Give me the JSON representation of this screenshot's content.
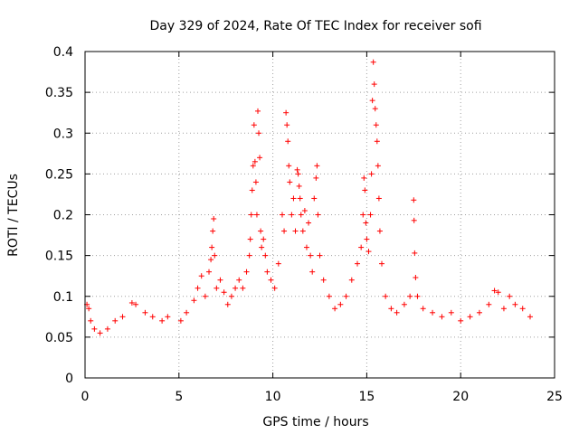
{
  "chart_data": {
    "type": "scatter",
    "title": "Day 329 of 2024, Rate Of TEC Index for receiver sofi",
    "xlabel": "GPS time / hours",
    "ylabel": "ROTI / TECUs",
    "xlim": [
      0,
      25
    ],
    "ylim": [
      0,
      0.4
    ],
    "xticks": [
      0,
      5,
      10,
      15,
      20,
      25
    ],
    "xtick_labels": [
      "0",
      "5",
      "10",
      "15",
      "20",
      "25"
    ],
    "yticks": [
      0,
      0.05,
      0.1,
      0.15,
      0.2,
      0.25,
      0.3,
      0.35,
      0.4
    ],
    "ytick_labels": [
      "0",
      "0.05",
      "0.1",
      "0.15",
      "0.2",
      "0.25",
      "0.3",
      "0.35",
      "0.4"
    ],
    "grid": true,
    "marker": "+",
    "color": "#ff0000",
    "series": [
      {
        "name": "ROTI",
        "points": [
          [
            0.1,
            0.09
          ],
          [
            0.2,
            0.085
          ],
          [
            0.3,
            0.07
          ],
          [
            0.5,
            0.06
          ],
          [
            0.8,
            0.055
          ],
          [
            1.2,
            0.06
          ],
          [
            1.6,
            0.07
          ],
          [
            2.0,
            0.075
          ],
          [
            2.5,
            0.092
          ],
          [
            2.7,
            0.09
          ],
          [
            3.2,
            0.08
          ],
          [
            3.6,
            0.075
          ],
          [
            4.1,
            0.07
          ],
          [
            4.4,
            0.075
          ],
          [
            5.1,
            0.07
          ],
          [
            5.4,
            0.08
          ],
          [
            5.8,
            0.095
          ],
          [
            6.0,
            0.11
          ],
          [
            6.2,
            0.125
          ],
          [
            6.4,
            0.1
          ],
          [
            6.6,
            0.13
          ],
          [
            6.7,
            0.145
          ],
          [
            6.75,
            0.16
          ],
          [
            6.8,
            0.18
          ],
          [
            6.85,
            0.195
          ],
          [
            6.9,
            0.15
          ],
          [
            7.0,
            0.11
          ],
          [
            7.2,
            0.12
          ],
          [
            7.4,
            0.105
          ],
          [
            7.6,
            0.09
          ],
          [
            7.8,
            0.1
          ],
          [
            8.0,
            0.11
          ],
          [
            8.2,
            0.12
          ],
          [
            8.4,
            0.11
          ],
          [
            8.6,
            0.13
          ],
          [
            8.75,
            0.15
          ],
          [
            8.8,
            0.17
          ],
          [
            8.85,
            0.2
          ],
          [
            8.9,
            0.23
          ],
          [
            8.95,
            0.26
          ],
          [
            9.0,
            0.31
          ],
          [
            9.05,
            0.265
          ],
          [
            9.1,
            0.24
          ],
          [
            9.15,
            0.2
          ],
          [
            9.2,
            0.327
          ],
          [
            9.25,
            0.3
          ],
          [
            9.3,
            0.27
          ],
          [
            9.35,
            0.18
          ],
          [
            9.4,
            0.16
          ],
          [
            9.5,
            0.17
          ],
          [
            9.6,
            0.15
          ],
          [
            9.7,
            0.13
          ],
          [
            9.9,
            0.12
          ],
          [
            10.1,
            0.11
          ],
          [
            10.3,
            0.14
          ],
          [
            10.5,
            0.2
          ],
          [
            10.6,
            0.18
          ],
          [
            10.7,
            0.325
          ],
          [
            10.75,
            0.31
          ],
          [
            10.8,
            0.29
          ],
          [
            10.85,
            0.26
          ],
          [
            10.9,
            0.24
          ],
          [
            11.0,
            0.2
          ],
          [
            11.1,
            0.22
          ],
          [
            11.2,
            0.18
          ],
          [
            11.3,
            0.255
          ],
          [
            11.35,
            0.25
          ],
          [
            11.4,
            0.235
          ],
          [
            11.45,
            0.22
          ],
          [
            11.5,
            0.2
          ],
          [
            11.6,
            0.18
          ],
          [
            11.7,
            0.205
          ],
          [
            11.8,
            0.16
          ],
          [
            11.9,
            0.19
          ],
          [
            12.0,
            0.15
          ],
          [
            12.1,
            0.13
          ],
          [
            12.2,
            0.22
          ],
          [
            12.3,
            0.245
          ],
          [
            12.35,
            0.26
          ],
          [
            12.4,
            0.2
          ],
          [
            12.5,
            0.15
          ],
          [
            12.7,
            0.12
          ],
          [
            13.0,
            0.1
          ],
          [
            13.3,
            0.085
          ],
          [
            13.6,
            0.09
          ],
          [
            13.9,
            0.1
          ],
          [
            14.2,
            0.12
          ],
          [
            14.5,
            0.14
          ],
          [
            14.7,
            0.16
          ],
          [
            14.8,
            0.2
          ],
          [
            14.85,
            0.245
          ],
          [
            14.9,
            0.23
          ],
          [
            14.95,
            0.19
          ],
          [
            15.0,
            0.17
          ],
          [
            15.1,
            0.155
          ],
          [
            15.2,
            0.2
          ],
          [
            15.25,
            0.25
          ],
          [
            15.3,
            0.34
          ],
          [
            15.35,
            0.387
          ],
          [
            15.4,
            0.36
          ],
          [
            15.45,
            0.33
          ],
          [
            15.5,
            0.31
          ],
          [
            15.55,
            0.29
          ],
          [
            15.6,
            0.26
          ],
          [
            15.65,
            0.22
          ],
          [
            15.7,
            0.18
          ],
          [
            15.8,
            0.14
          ],
          [
            16.0,
            0.1
          ],
          [
            16.3,
            0.085
          ],
          [
            16.6,
            0.08
          ],
          [
            17.0,
            0.09
          ],
          [
            17.3,
            0.1
          ],
          [
            17.5,
            0.218
          ],
          [
            17.52,
            0.193
          ],
          [
            17.55,
            0.153
          ],
          [
            17.6,
            0.123
          ],
          [
            17.7,
            0.1
          ],
          [
            18.0,
            0.085
          ],
          [
            18.5,
            0.08
          ],
          [
            19.0,
            0.075
          ],
          [
            19.5,
            0.08
          ],
          [
            20.0,
            0.07
          ],
          [
            20.5,
            0.075
          ],
          [
            21.0,
            0.08
          ],
          [
            21.5,
            0.09
          ],
          [
            21.8,
            0.107
          ],
          [
            22.0,
            0.105
          ],
          [
            22.3,
            0.085
          ],
          [
            22.6,
            0.1
          ],
          [
            22.9,
            0.09
          ],
          [
            23.3,
            0.085
          ],
          [
            23.7,
            0.075
          ]
        ]
      }
    ]
  }
}
